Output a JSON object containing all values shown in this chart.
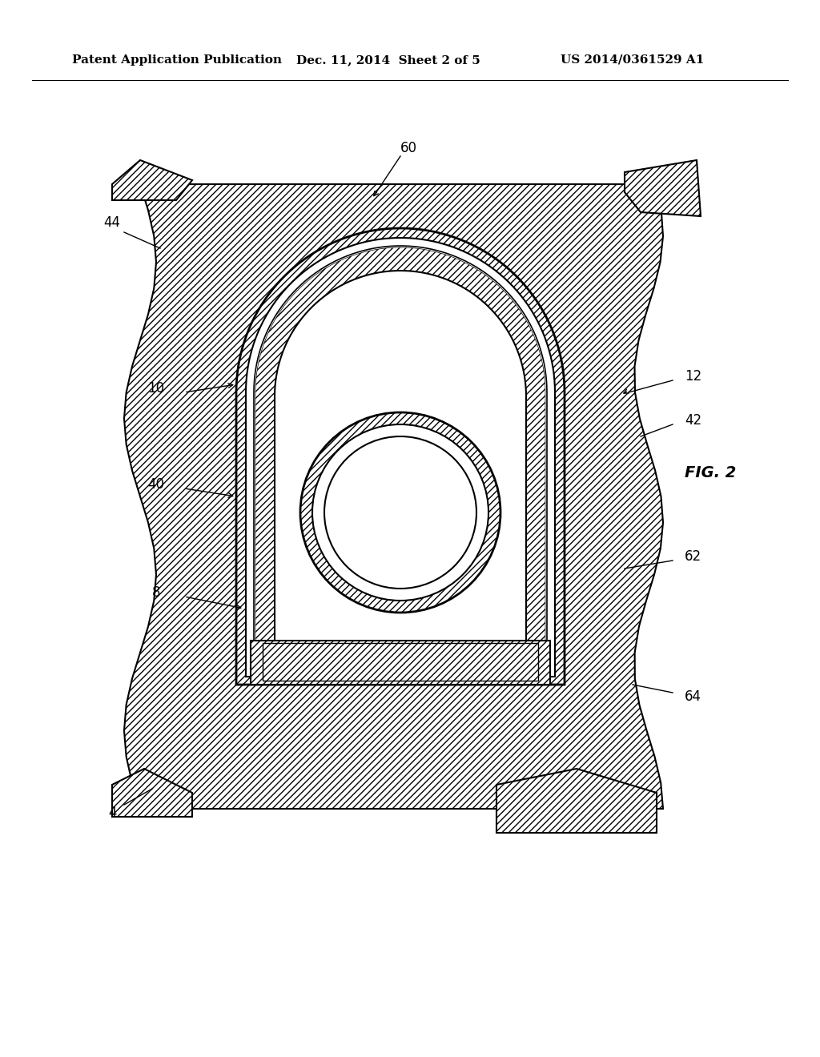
{
  "bg_color": "#ffffff",
  "line_color": "#000000",
  "header_text": "Patent Application Publication",
  "header_date": "Dec. 11, 2014  Sheet 2 of 5",
  "header_patent": "US 2014/0361529 A1",
  "fig_label": "FIG. 2",
  "soil_hatch": "////",
  "device_hatch": "////"
}
